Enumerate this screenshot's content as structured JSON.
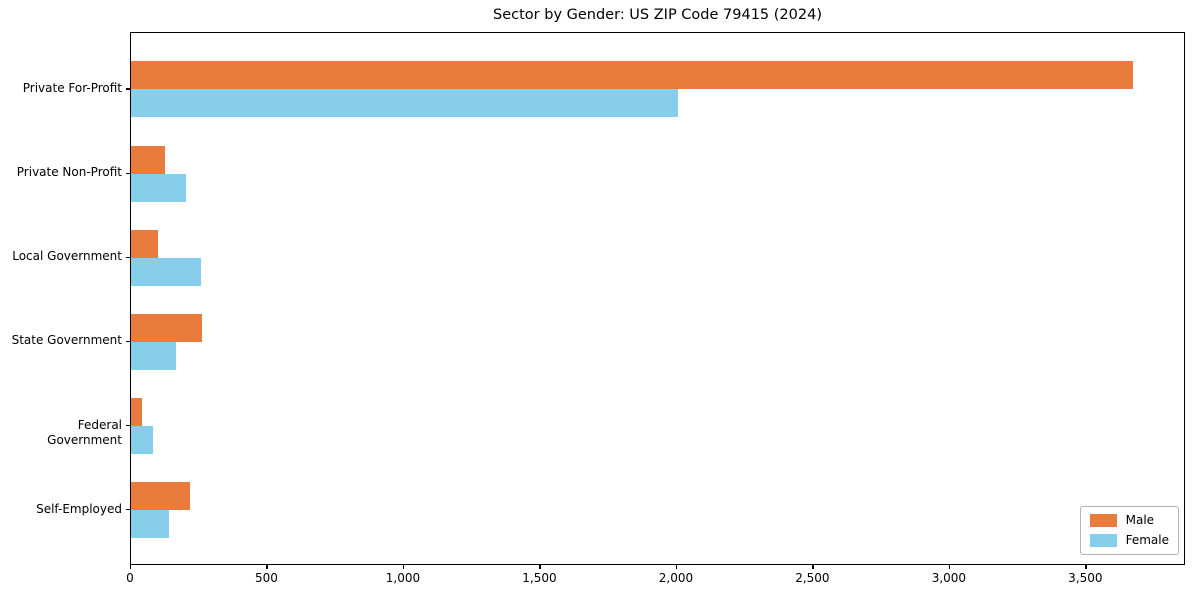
{
  "chart_data": {
    "type": "bar",
    "orientation": "horizontal",
    "title": "Sector by Gender: US ZIP Code 79415 (2024)",
    "categories": [
      "Private For-Profit",
      "Private Non-Profit",
      "Local Government",
      "State Government",
      "Federal Government",
      "Self-Employed"
    ],
    "series": [
      {
        "name": "Male",
        "color": "#E97C3C",
        "values": [
          3670,
          125,
          100,
          260,
          40,
          215
        ]
      },
      {
        "name": "Female",
        "color": "#87CEEB",
        "values": [
          2005,
          200,
          255,
          165,
          80,
          140
        ]
      }
    ],
    "xlim": [
      0,
      3865
    ],
    "xticks": [
      0,
      500,
      1000,
      1500,
      2000,
      2500,
      3000,
      3500
    ],
    "xtick_labels": [
      "0",
      "500",
      "1,000",
      "1,500",
      "2,000",
      "2,500",
      "3,000",
      "3,500"
    ],
    "xlabel": "",
    "ylabel": "",
    "grid": false,
    "legend": {
      "position": "lower right",
      "entries": [
        "Male",
        "Female"
      ]
    },
    "colors": {
      "male": "#E97C3C",
      "female": "#87CEEB",
      "axis": "#000000",
      "background": "#ffffff"
    }
  }
}
